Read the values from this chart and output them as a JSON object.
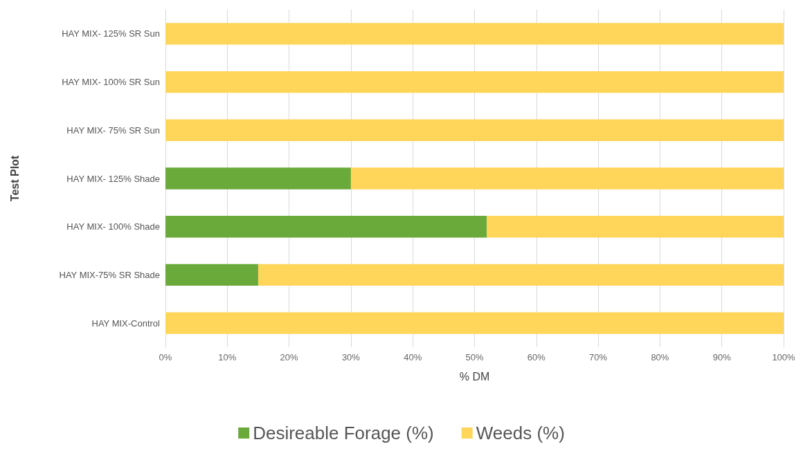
{
  "chart_data": {
    "type": "bar",
    "orientation": "horizontal",
    "stacked": true,
    "xlabel": "% DM",
    "ylabel": "Test Plot",
    "categories": [
      "HAY MIX- 125% SR Sun",
      "HAY MIX- 100% SR Sun",
      "HAY MIX- 75% SR Sun",
      "HAY MIX- 125% Shade",
      "HAY MIX- 100% Shade",
      "HAY MIX-75% SR Shade",
      "HAY MIX-Control"
    ],
    "series": [
      {
        "name": "Desireable Forage (%)",
        "color": "#6aaa3a",
        "values": [
          0,
          0,
          0,
          30,
          52,
          15,
          0
        ]
      },
      {
        "name": "Weeds (%)",
        "color": "#ffd55a",
        "values": [
          100,
          100,
          100,
          70,
          48,
          85,
          100
        ]
      }
    ],
    "xlim": [
      0,
      100
    ],
    "xticks": [
      {
        "value": 0,
        "label": "0%"
      },
      {
        "value": 10,
        "label": "10%"
      },
      {
        "value": 20,
        "label": "20%"
      },
      {
        "value": 30,
        "label": "30%"
      },
      {
        "value": 40,
        "label": "40%"
      },
      {
        "value": 50,
        "label": "50%"
      },
      {
        "value": 60,
        "label": "60%"
      },
      {
        "value": 70,
        "label": "70%"
      },
      {
        "value": 80,
        "label": "80%"
      },
      {
        "value": 90,
        "label": "90%"
      },
      {
        "value": 100,
        "label": "100%"
      }
    ],
    "grid": "x",
    "legend": "bottom"
  }
}
